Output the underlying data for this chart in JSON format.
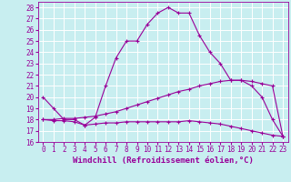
{
  "xlabel": "Windchill (Refroidissement éolien,°C)",
  "bg_color": "#c8eef0",
  "grid_color": "#ffffff",
  "line_color": "#990099",
  "xlim": [
    -0.5,
    23.5
  ],
  "ylim": [
    16,
    28.5
  ],
  "xtick_labels": [
    "0",
    "1",
    "2",
    "3",
    "4",
    "5",
    "6",
    "7",
    "8",
    "9",
    "10",
    "11",
    "12",
    "13",
    "14",
    "15",
    "16",
    "17",
    "18",
    "19",
    "20",
    "21",
    "22",
    "23"
  ],
  "xticks": [
    0,
    1,
    2,
    3,
    4,
    5,
    6,
    7,
    8,
    9,
    10,
    11,
    12,
    13,
    14,
    15,
    16,
    17,
    18,
    19,
    20,
    21,
    22,
    23
  ],
  "yticks": [
    16,
    17,
    18,
    19,
    20,
    21,
    22,
    23,
    24,
    25,
    26,
    27,
    28
  ],
  "line1_x": [
    0,
    1,
    2,
    3,
    4,
    5,
    6,
    7,
    8,
    9,
    10,
    11,
    12,
    13,
    14,
    15,
    16,
    17,
    18,
    19,
    20,
    21,
    22,
    23
  ],
  "line1_y": [
    20.0,
    19.0,
    18.0,
    18.0,
    17.5,
    18.2,
    21.0,
    23.5,
    25.0,
    25.0,
    26.5,
    27.5,
    28.0,
    27.5,
    27.5,
    25.5,
    24.0,
    23.0,
    21.5,
    21.5,
    21.0,
    20.0,
    18.0,
    16.5
  ],
  "line2_x": [
    0,
    1,
    2,
    3,
    4,
    5,
    6,
    7,
    8,
    9,
    10,
    11,
    12,
    13,
    14,
    15,
    16,
    17,
    18,
    19,
    20,
    21,
    22,
    23
  ],
  "line2_y": [
    18.0,
    18.0,
    18.1,
    18.1,
    18.2,
    18.3,
    18.5,
    18.7,
    19.0,
    19.3,
    19.6,
    19.9,
    20.2,
    20.5,
    20.7,
    21.0,
    21.2,
    21.4,
    21.5,
    21.5,
    21.4,
    21.2,
    21.0,
    16.5
  ],
  "line3_x": [
    0,
    1,
    2,
    3,
    4,
    5,
    6,
    7,
    8,
    9,
    10,
    11,
    12,
    13,
    14,
    15,
    16,
    17,
    18,
    19,
    20,
    21,
    22,
    23
  ],
  "line3_y": [
    18.0,
    17.9,
    17.9,
    17.8,
    17.5,
    17.6,
    17.7,
    17.7,
    17.8,
    17.8,
    17.8,
    17.8,
    17.8,
    17.8,
    17.9,
    17.8,
    17.7,
    17.6,
    17.4,
    17.2,
    17.0,
    16.8,
    16.6,
    16.5
  ],
  "xlabel_fontsize": 6.5,
  "tick_fontsize": 5.5
}
